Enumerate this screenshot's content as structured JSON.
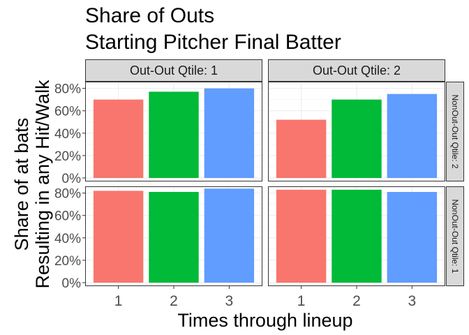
{
  "chart_data": {
    "type": "bar",
    "title": [
      "Share of Outs",
      "Starting Pitcher Final Batter"
    ],
    "xlabel": "Times through lineup",
    "ylabel": [
      "Share of at bats",
      "Resulting in any Hit/Walk"
    ],
    "categories": [
      "1",
      "2",
      "3"
    ],
    "ylim": [
      0,
      0.86
    ],
    "yticks": [
      0,
      0.2,
      0.4,
      0.6,
      0.8
    ],
    "ytick_labels": [
      "0%",
      "20%",
      "40%",
      "60%",
      "80%"
    ],
    "bar_colors": [
      "#F8766D",
      "#00BA38",
      "#619CFF"
    ],
    "col_facets": [
      "Out-Out Qtile: 1",
      "Out-Out Qtile: 2"
    ],
    "row_facets": [
      "NonOut-Out Qtile: 2",
      "NonOut-Out Qtile: 1"
    ],
    "panels": [
      {
        "row": 0,
        "col": 0,
        "values": [
          0.7,
          0.77,
          0.8
        ]
      },
      {
        "row": 0,
        "col": 1,
        "values": [
          0.52,
          0.7,
          0.75
        ]
      },
      {
        "row": 1,
        "col": 0,
        "values": [
          0.82,
          0.81,
          0.84
        ]
      },
      {
        "row": 1,
        "col": 1,
        "values": [
          0.83,
          0.83,
          0.81
        ]
      }
    ],
    "grid": true,
    "legend": "none"
  }
}
